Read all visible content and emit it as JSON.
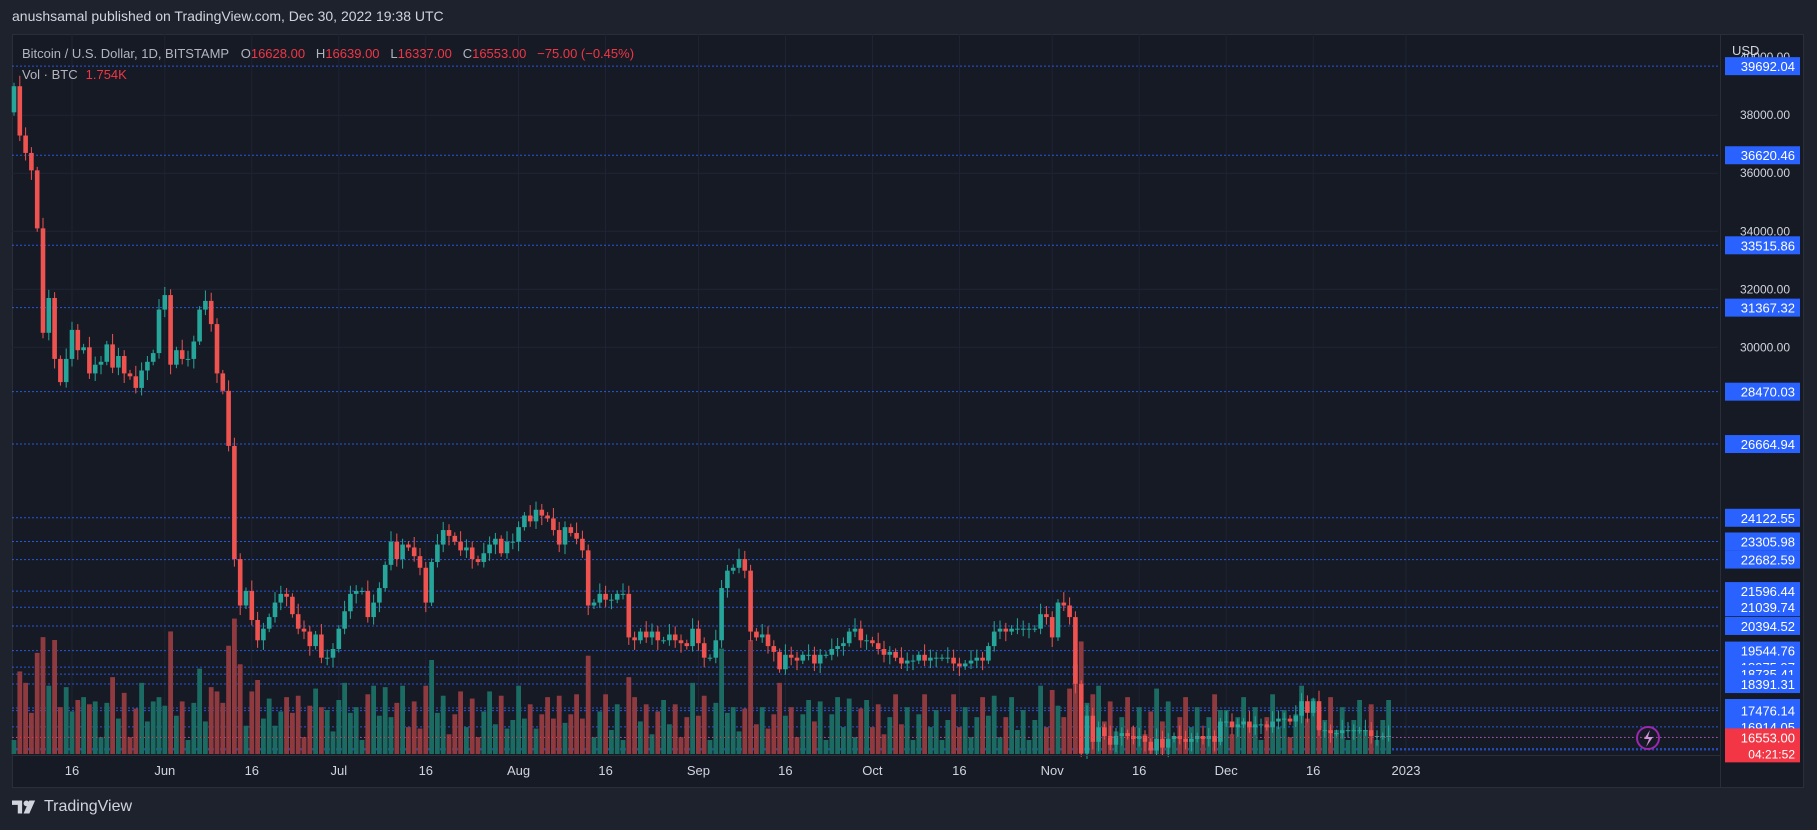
{
  "publish_line": "anushsamal published on TradingView.com, Dec 30, 2022 19:38 UTC",
  "brand": "TradingView",
  "currency": "USD",
  "legend": {
    "symbol": "Bitcoin / U.S. Dollar, 1D, BITSTAMP",
    "o_label": "O",
    "o_value": "16628.00",
    "h_label": "H",
    "h_value": "16639.00",
    "l_label": "L",
    "l_value": "16337.00",
    "c_label": "C",
    "c_value": "16553.00",
    "change": "−75.00 (−0.45%)",
    "vol_label": "Vol · BTC",
    "vol_value": "1.754K"
  },
  "colors": {
    "up": "#26a69a",
    "down": "#ef5350",
    "vol_up": "#1b6b63",
    "vol_down": "#8f3a3f",
    "level_line": "#2962ff",
    "price_tag": "#2962ff",
    "last_tag": "#f23645",
    "grid": "#1f2433",
    "axis_text": "#d1d4dc"
  },
  "chart_data": {
    "type": "candlestick",
    "title": "Bitcoin / U.S. Dollar, 1D, BITSTAMP",
    "ylim": [
      15980,
      40800
    ],
    "y_ticks": [
      30000,
      32000,
      34000,
      36000,
      38000
    ],
    "y_ticks_partial": [
      "40000.00"
    ],
    "x_labels": [
      {
        "label": "16",
        "i": 10
      },
      {
        "label": "Jun",
        "i": 26
      },
      {
        "label": "16",
        "i": 41
      },
      {
        "label": "Jul",
        "i": 56
      },
      {
        "label": "16",
        "i": 71
      },
      {
        "label": "Aug",
        "i": 87
      },
      {
        "label": "16",
        "i": 102
      },
      {
        "label": "Sep",
        "i": 118
      },
      {
        "label": "16",
        "i": 133
      },
      {
        "label": "Oct",
        "i": 148
      },
      {
        "label": "16",
        "i": 163
      },
      {
        "label": "Nov",
        "i": 179
      },
      {
        "label": "16",
        "i": 194
      },
      {
        "label": "Dec",
        "i": 209
      },
      {
        "label": "16",
        "i": 224
      },
      {
        "label": "2023",
        "i": 240
      }
    ],
    "price_levels": [
      "39692.04",
      "36620.46",
      "33515.86",
      "31367.32",
      "28470.03",
      "26664.94",
      "24122.55",
      "23305.98",
      "22682.59",
      "21596.44",
      "21039.74",
      "20394.52",
      "19544.76",
      "18975.97",
      "18735.41",
      "18391.31",
      "17565.84",
      "17476.14",
      "16914.05",
      "16546.76",
      "16159.18",
      "16123.65"
    ],
    "last_price": "16553.00",
    "countdown": "04:21:52",
    "close": [
      39000,
      37300,
      36700,
      36100,
      34100,
      30500,
      31700,
      29600,
      28800,
      29600,
      30600,
      29900,
      30000,
      29100,
      29400,
      29500,
      30100,
      29300,
      29700,
      29100,
      29000,
      28600,
      29200,
      29500,
      29800,
      31300,
      31800,
      29400,
      29900,
      29600,
      29600,
      30200,
      31300,
      31600,
      30800,
      29100,
      28500,
      26600,
      22700,
      21100,
      21600,
      20600,
      19900,
      20300,
      20700,
      21200,
      21500,
      21400,
      20800,
      20300,
      20200,
      19700,
      20100,
      19300,
      19300,
      19600,
      20300,
      20900,
      21500,
      21600,
      21600,
      20700,
      21200,
      21700,
      22500,
      23300,
      22700,
      23200,
      23100,
      22800,
      22400,
      21200,
      22600,
      23200,
      23700,
      23500,
      23300,
      23000,
      23100,
      22700,
      22600,
      22900,
      23200,
      23400,
      22900,
      23300,
      23300,
      23800,
      24200,
      24000,
      24400,
      24200,
      24100,
      23700,
      23200,
      23800,
      23600,
      23400,
      23000,
      21100,
      21200,
      21500,
      21300,
      21300,
      21500,
      21500,
      20000,
      19900,
      20200,
      20000,
      20200,
      19900,
      19900,
      20100,
      19900,
      19800,
      19700,
      20300,
      19800,
      19300,
      19300,
      19900,
      21700,
      22300,
      22400,
      22700,
      22300,
      20200,
      20000,
      20100,
      19700,
      19500,
      18900,
      19400,
      19300,
      19200,
      19400,
      19400,
      19100,
      19400,
      19400,
      19600,
      19700,
      19800,
      20200,
      20300,
      19900,
      19900,
      19800,
      19600,
      19400,
      19500,
      19300,
      19100,
      19200,
      19200,
      19400,
      19200,
      19300,
      19300,
      19300,
      19300,
      19100,
      19000,
      19100,
      19200,
      19300,
      19200,
      19700,
      20200,
      20300,
      20200,
      20300,
      20300,
      20300,
      20300,
      20300,
      20800,
      20700,
      20000,
      21200,
      21100,
      20700,
      18400,
      16000,
      17300,
      16400,
      16900,
      16600,
      16300,
      16600,
      16700,
      16600,
      16500,
      16600,
      16400,
      16100,
      16500,
      16200,
      16500,
      16600,
      16500,
      16400,
      16500,
      16600,
      16500,
      16600,
      16400,
      17100,
      17100,
      16900,
      17000,
      17100,
      16900,
      17000,
      17000,
      16900,
      17100,
      17200,
      17200,
      17100,
      17300,
      17800,
      17400,
      17800,
      16800,
      16800,
      16700,
      16700,
      16800,
      16800,
      16800,
      16800,
      16800,
      16600,
      16600,
      16600,
      16600
    ]
  }
}
